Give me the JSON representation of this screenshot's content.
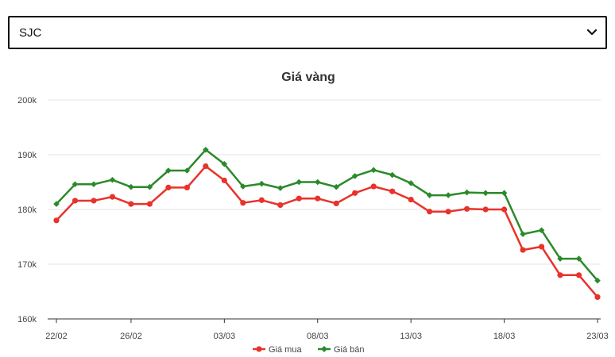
{
  "selector": {
    "value": "SJC"
  },
  "chart_data": {
    "type": "line",
    "title": "Giá vàng",
    "ylim": [
      160000,
      200000
    ],
    "y_ticks": [
      {
        "value": 160000,
        "label": "160k"
      },
      {
        "value": 170000,
        "label": "170k"
      },
      {
        "value": 180000,
        "label": "180k"
      },
      {
        "value": 190000,
        "label": "190k"
      },
      {
        "value": 200000,
        "label": "200k"
      }
    ],
    "x_tick_labels": [
      {
        "index": 0,
        "label": "22/02"
      },
      {
        "index": 4,
        "label": "26/02"
      },
      {
        "index": 9,
        "label": "03/03"
      },
      {
        "index": 14,
        "label": "08/03"
      },
      {
        "index": 19,
        "label": "13/03"
      },
      {
        "index": 24,
        "label": "18/03"
      },
      {
        "index": 29,
        "label": "23/03"
      }
    ],
    "grid": true,
    "legend": "bottom",
    "series": [
      {
        "name": "Giá mua",
        "color": "#e8322b",
        "marker": "circle",
        "values": [
          178000,
          181600,
          181600,
          182300,
          181000,
          181000,
          184000,
          184000,
          187900,
          185300,
          181200,
          181700,
          180800,
          182000,
          182000,
          181100,
          183000,
          184200,
          183300,
          181800,
          179600,
          179600,
          180100,
          180000,
          180000,
          172600,
          173200,
          168000,
          168000,
          164000
        ]
      },
      {
        "name": "Giá bán",
        "color": "#2a8a2a",
        "marker": "diamond",
        "values": [
          181000,
          184600,
          184600,
          185400,
          184100,
          184100,
          187100,
          187100,
          190900,
          188300,
          184200,
          184700,
          183900,
          185000,
          185000,
          184100,
          186100,
          187200,
          186300,
          184800,
          182600,
          182600,
          183100,
          183000,
          183000,
          175500,
          176200,
          171000,
          171000,
          167000
        ]
      }
    ]
  }
}
